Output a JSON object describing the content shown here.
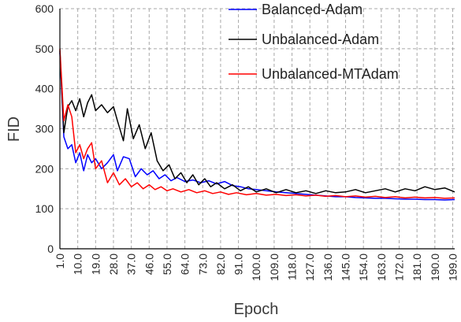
{
  "chart_data": {
    "type": "line",
    "xlabel": "Epoch",
    "ylabel": "FID",
    "xlim": [
      1,
      200
    ],
    "ylim": [
      0,
      600
    ],
    "yticks": [
      0,
      100,
      200,
      300,
      400,
      500,
      600
    ],
    "xtick_labels": [
      "1.0",
      "10.0",
      "19.0",
      "28.0",
      "37.0",
      "46.0",
      "55.0",
      "64.0",
      "73.0",
      "82.0",
      "91.0",
      "100.0",
      "109.0",
      "118.0",
      "127.0",
      "136.0",
      "145.0",
      "154.0",
      "163.0",
      "172.0",
      "181.0",
      "190.0",
      "199.0"
    ],
    "grid": true,
    "legend_position": "top-right",
    "series": [
      {
        "name": "Balanced-Adam",
        "color": "#0000ff",
        "points": [
          [
            1,
            490
          ],
          [
            3,
            280
          ],
          [
            5,
            250
          ],
          [
            7,
            260
          ],
          [
            9,
            215
          ],
          [
            11,
            240
          ],
          [
            13,
            195
          ],
          [
            15,
            235
          ],
          [
            17,
            215
          ],
          [
            19,
            225
          ],
          [
            22,
            200
          ],
          [
            25,
            215
          ],
          [
            28,
            235
          ],
          [
            30,
            195
          ],
          [
            33,
            230
          ],
          [
            36,
            225
          ],
          [
            39,
            180
          ],
          [
            42,
            200
          ],
          [
            45,
            185
          ],
          [
            48,
            195
          ],
          [
            51,
            175
          ],
          [
            54,
            185
          ],
          [
            57,
            170
          ],
          [
            60,
            178
          ],
          [
            64,
            168
          ],
          [
            68,
            172
          ],
          [
            72,
            165
          ],
          [
            76,
            170
          ],
          [
            80,
            162
          ],
          [
            84,
            168
          ],
          [
            88,
            158
          ],
          [
            92,
            155
          ],
          [
            96,
            150
          ],
          [
            100,
            148
          ],
          [
            105,
            145
          ],
          [
            110,
            142
          ],
          [
            115,
            140
          ],
          [
            120,
            138
          ],
          [
            125,
            136
          ],
          [
            130,
            134
          ],
          [
            135,
            132
          ],
          [
            140,
            130
          ],
          [
            145,
            130
          ],
          [
            150,
            128
          ],
          [
            155,
            127
          ],
          [
            160,
            126
          ],
          [
            165,
            126
          ],
          [
            170,
            125
          ],
          [
            175,
            124
          ],
          [
            180,
            124
          ],
          [
            185,
            123
          ],
          [
            190,
            123
          ],
          [
            195,
            122
          ],
          [
            200,
            123
          ]
        ]
      },
      {
        "name": "Unbalanced-Adam",
        "color": "#000000",
        "points": [
          [
            1,
            495
          ],
          [
            3,
            290
          ],
          [
            5,
            355
          ],
          [
            7,
            370
          ],
          [
            9,
            345
          ],
          [
            11,
            375
          ],
          [
            13,
            330
          ],
          [
            15,
            365
          ],
          [
            17,
            385
          ],
          [
            19,
            345
          ],
          [
            22,
            360
          ],
          [
            25,
            340
          ],
          [
            28,
            355
          ],
          [
            30,
            320
          ],
          [
            33,
            270
          ],
          [
            35,
            350
          ],
          [
            38,
            275
          ],
          [
            41,
            310
          ],
          [
            44,
            250
          ],
          [
            47,
            290
          ],
          [
            50,
            220
          ],
          [
            53,
            195
          ],
          [
            56,
            210
          ],
          [
            59,
            175
          ],
          [
            62,
            190
          ],
          [
            65,
            165
          ],
          [
            68,
            185
          ],
          [
            71,
            160
          ],
          [
            74,
            175
          ],
          [
            77,
            155
          ],
          [
            80,
            165
          ],
          [
            84,
            150
          ],
          [
            88,
            160
          ],
          [
            92,
            145
          ],
          [
            96,
            155
          ],
          [
            100,
            142
          ],
          [
            105,
            150
          ],
          [
            110,
            140
          ],
          [
            115,
            148
          ],
          [
            120,
            140
          ],
          [
            125,
            145
          ],
          [
            130,
            138
          ],
          [
            135,
            145
          ],
          [
            140,
            140
          ],
          [
            145,
            142
          ],
          [
            150,
            148
          ],
          [
            155,
            140
          ],
          [
            160,
            145
          ],
          [
            165,
            150
          ],
          [
            170,
            142
          ],
          [
            175,
            150
          ],
          [
            180,
            145
          ],
          [
            185,
            155
          ],
          [
            190,
            148
          ],
          [
            195,
            152
          ],
          [
            200,
            142
          ]
        ]
      },
      {
        "name": "Unbalanced-MTAdam",
        "color": "#ff0000",
        "points": [
          [
            1,
            500
          ],
          [
            3,
            320
          ],
          [
            5,
            360
          ],
          [
            7,
            330
          ],
          [
            9,
            240
          ],
          [
            11,
            260
          ],
          [
            13,
            225
          ],
          [
            15,
            250
          ],
          [
            17,
            265
          ],
          [
            19,
            200
          ],
          [
            22,
            220
          ],
          [
            25,
            165
          ],
          [
            28,
            190
          ],
          [
            31,
            160
          ],
          [
            34,
            175
          ],
          [
            37,
            155
          ],
          [
            40,
            165
          ],
          [
            43,
            150
          ],
          [
            46,
            160
          ],
          [
            49,
            148
          ],
          [
            52,
            155
          ],
          [
            55,
            145
          ],
          [
            58,
            150
          ],
          [
            62,
            142
          ],
          [
            66,
            148
          ],
          [
            70,
            140
          ],
          [
            74,
            145
          ],
          [
            78,
            138
          ],
          [
            82,
            142
          ],
          [
            86,
            136
          ],
          [
            90,
            140
          ],
          [
            95,
            135
          ],
          [
            100,
            138
          ],
          [
            105,
            134
          ],
          [
            110,
            136
          ],
          [
            115,
            133
          ],
          [
            120,
            135
          ],
          [
            125,
            132
          ],
          [
            130,
            134
          ],
          [
            135,
            131
          ],
          [
            140,
            133
          ],
          [
            145,
            130
          ],
          [
            150,
            132
          ],
          [
            155,
            129
          ],
          [
            160,
            131
          ],
          [
            165,
            128
          ],
          [
            170,
            130
          ],
          [
            175,
            127
          ],
          [
            180,
            129
          ],
          [
            185,
            127
          ],
          [
            190,
            128
          ],
          [
            195,
            126
          ],
          [
            200,
            127
          ]
        ]
      }
    ]
  }
}
